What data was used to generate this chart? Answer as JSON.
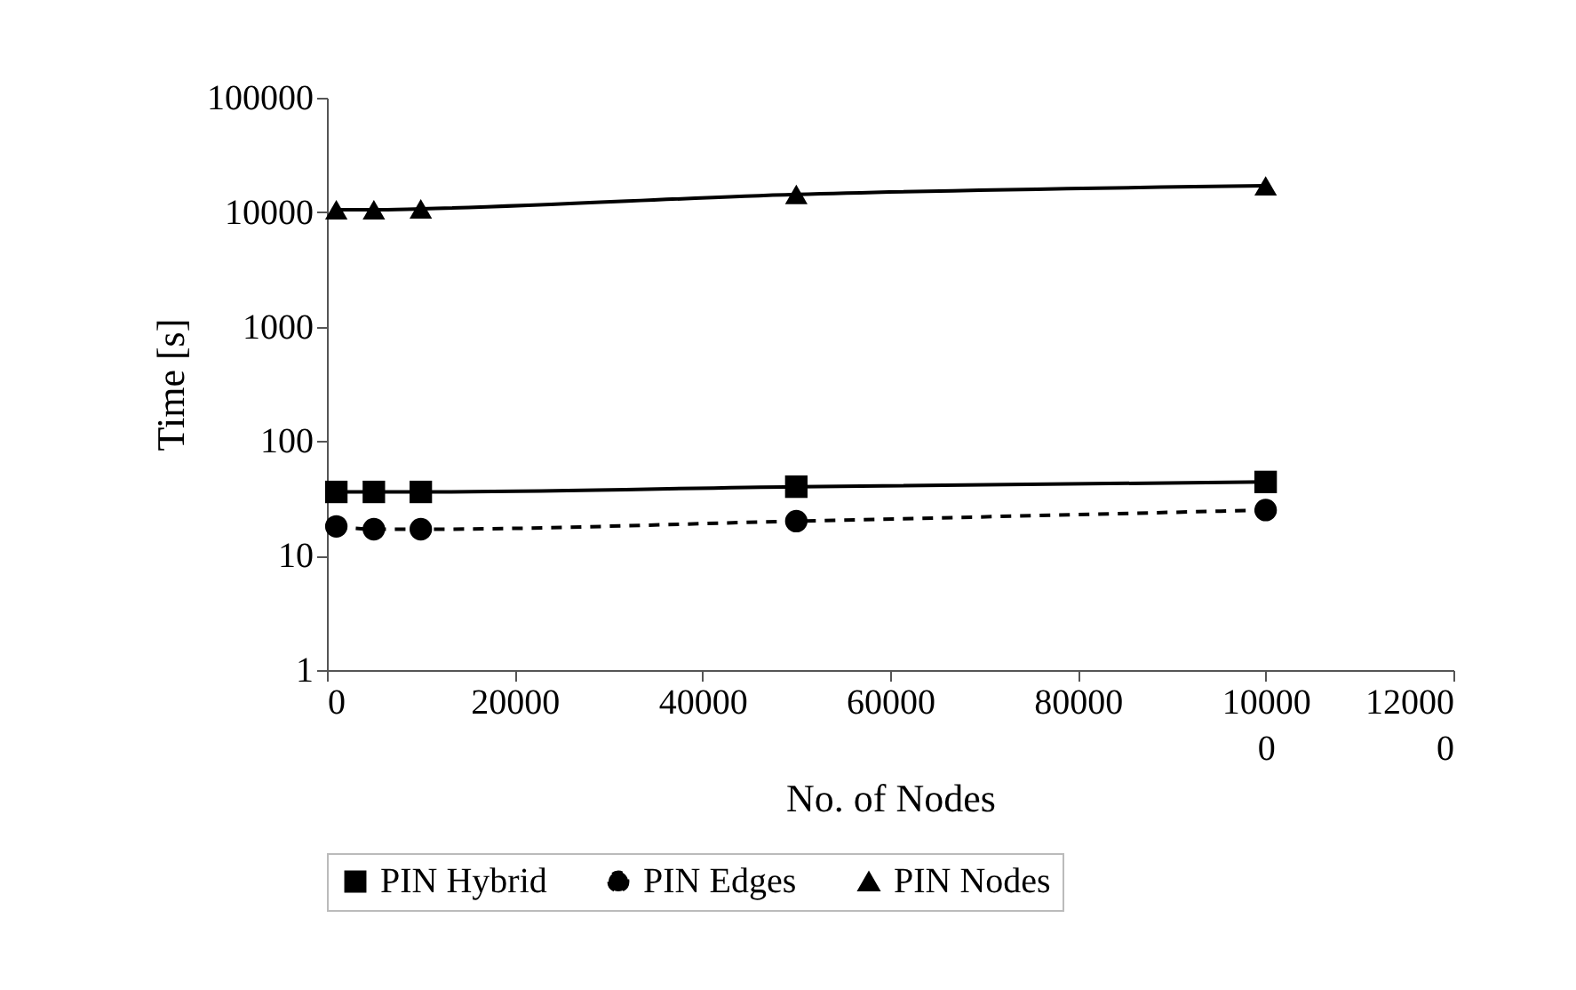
{
  "chart_data": {
    "type": "line",
    "xlabel": "No. of Nodes",
    "ylabel": "Time [s]",
    "log": true,
    "grid": false,
    "legend": "bottom",
    "x": [
      1000,
      5000,
      10000,
      50000,
      100000
    ],
    "xlim": [
      0,
      120000
    ],
    "xticks": [
      0,
      20000,
      40000,
      60000,
      80000,
      100000,
      120000
    ],
    "ylim": [
      1,
      100000
    ],
    "yticks": [
      1,
      10,
      100,
      1000,
      10000,
      100000
    ],
    "series": [
      {
        "name": "PIN Hybrid",
        "color": "#000000",
        "marker": "square",
        "line_style": "solid",
        "values": [
          36,
          36,
          36,
          40,
          44
        ]
      },
      {
        "name": "PIN Edges",
        "color": "#000000",
        "marker": "circle",
        "line_style": "dashed",
        "values": [
          18,
          17,
          17,
          20,
          25
        ]
      },
      {
        "name": "PIN Nodes",
        "color": "#000000",
        "marker": "triangle",
        "line_style": "solid",
        "values": [
          10500,
          10500,
          10700,
          14300,
          17000
        ]
      }
    ]
  }
}
